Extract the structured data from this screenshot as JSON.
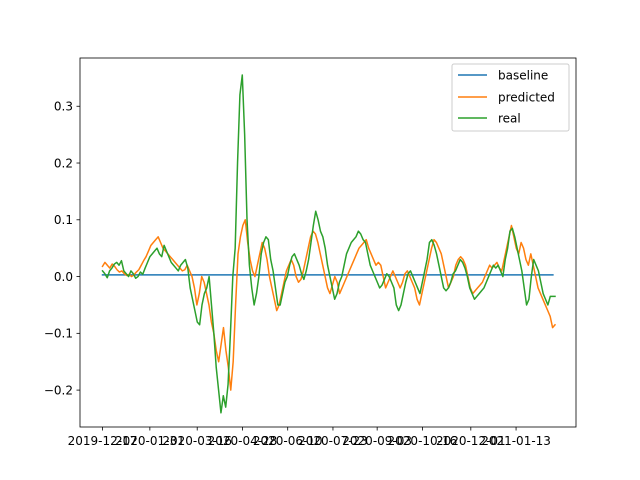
{
  "chart_data": {
    "type": "line",
    "title": "",
    "xlabel": "",
    "ylabel": "",
    "x_tick_labels": [
      "2019-12-17",
      "2020-01-31",
      "2020-03-16",
      "2020-04-28",
      "2020-06-10",
      "2020-07-23",
      "2020-09-03",
      "2020-10-16",
      "2020-12-01",
      "2021-01-13"
    ],
    "ylim": [
      -0.265,
      0.385
    ],
    "y_ticks": [
      -0.2,
      -0.1,
      0.0,
      0.1,
      0.2,
      0.3
    ],
    "y_tick_labels": [
      "−0.2",
      "−0.1",
      "0.0",
      "0.1",
      "0.2",
      "0.3"
    ],
    "legend": {
      "placement": "top-right",
      "entries": [
        "baseline",
        "predicted",
        "real"
      ]
    },
    "grid": false,
    "colors": {
      "baseline": "#1f77b4",
      "predicted": "#ff7f0e",
      "real": "#2ca02c"
    },
    "series": [
      {
        "name": "baseline",
        "x_start": "2019-12-17",
        "x_end": "2021-02-17",
        "values": [
          0.003,
          0.003
        ]
      },
      {
        "name": "predicted",
        "x_start": "2019-12-17",
        "x_end": "2021-02-19",
        "values": [
          0.018,
          0.025,
          0.02,
          0.015,
          0.022,
          0.018,
          0.012,
          0.008,
          0.01,
          0.005,
          0.002,
          0.004,
          0.0,
          0.003,
          0.008,
          0.012,
          0.02,
          0.028,
          0.035,
          0.045,
          0.055,
          0.06,
          0.065,
          0.07,
          0.06,
          0.05,
          0.045,
          0.04,
          0.035,
          0.03,
          0.025,
          0.02,
          0.015,
          0.01,
          0.012,
          0.02,
          0.01,
          0.0,
          -0.02,
          -0.05,
          -0.03,
          0.0,
          -0.01,
          -0.03,
          -0.05,
          -0.08,
          -0.1,
          -0.13,
          -0.15,
          -0.12,
          -0.09,
          -0.13,
          -0.16,
          -0.2,
          -0.15,
          -0.05,
          0.04,
          0.07,
          0.09,
          0.1,
          0.06,
          0.03,
          0.01,
          0.0,
          0.02,
          0.04,
          0.06,
          0.05,
          0.03,
          0.0,
          -0.02,
          -0.04,
          -0.06,
          -0.05,
          -0.03,
          -0.01,
          0.01,
          0.02,
          0.03,
          0.02,
          0.0,
          -0.01,
          -0.005,
          0.01,
          0.03,
          0.05,
          0.07,
          0.08,
          0.075,
          0.06,
          0.04,
          0.02,
          0.0,
          -0.02,
          -0.03,
          -0.015,
          0.0,
          -0.01,
          -0.03,
          -0.02,
          -0.01,
          0.0,
          0.01,
          0.02,
          0.03,
          0.04,
          0.05,
          0.055,
          0.06,
          0.065,
          0.05,
          0.04,
          0.03,
          0.02,
          0.025,
          0.02,
          0.0,
          -0.02,
          -0.01,
          0.0,
          0.01,
          0.0,
          -0.01,
          -0.02,
          -0.01,
          0.005,
          0.01,
          0.0,
          -0.01,
          -0.02,
          -0.04,
          -0.05,
          -0.03,
          -0.01,
          0.01,
          0.03,
          0.05,
          0.065,
          0.06,
          0.05,
          0.04,
          0.02,
          0.0,
          -0.02,
          -0.01,
          0.0,
          0.02,
          0.03,
          0.035,
          0.03,
          0.02,
          0.0,
          -0.02,
          -0.03,
          -0.025,
          -0.02,
          -0.015,
          -0.01,
          0.0,
          0.01,
          0.02,
          0.015,
          0.02,
          0.025,
          0.015,
          0.01,
          0.03,
          0.05,
          0.07,
          0.09,
          0.07,
          0.05,
          0.04,
          0.06,
          0.05,
          0.03,
          0.02,
          0.04,
          0.02,
          0.0,
          -0.02,
          -0.03,
          -0.04,
          -0.05,
          -0.06,
          -0.07,
          -0.09,
          -0.085
        ]
      },
      {
        "name": "real",
        "x_start": "2019-12-17",
        "x_end": "2021-02-19",
        "values": [
          0.01,
          0.005,
          -0.002,
          0.01,
          0.015,
          0.022,
          0.025,
          0.02,
          0.028,
          0.01,
          0.005,
          0.0,
          0.01,
          0.005,
          -0.003,
          0.0,
          0.008,
          0.004,
          0.015,
          0.025,
          0.035,
          0.04,
          0.045,
          0.05,
          0.04,
          0.035,
          0.055,
          0.045,
          0.035,
          0.025,
          0.02,
          0.015,
          0.01,
          0.02,
          0.025,
          0.03,
          0.015,
          -0.02,
          -0.04,
          -0.06,
          -0.08,
          -0.085,
          -0.05,
          -0.03,
          -0.02,
          0.0,
          -0.05,
          -0.1,
          -0.16,
          -0.2,
          -0.24,
          -0.21,
          -0.23,
          -0.19,
          -0.1,
          0.0,
          0.05,
          0.2,
          0.32,
          0.355,
          0.25,
          0.1,
          0.02,
          -0.02,
          -0.05,
          -0.03,
          0.0,
          0.04,
          0.06,
          0.07,
          0.065,
          0.03,
          0.01,
          -0.02,
          -0.05,
          -0.05,
          -0.03,
          -0.01,
          0.0,
          0.02,
          0.035,
          0.04,
          0.03,
          0.02,
          0.005,
          -0.005,
          0.01,
          0.03,
          0.06,
          0.09,
          0.115,
          0.1,
          0.08,
          0.07,
          0.05,
          0.02,
          0.0,
          -0.02,
          -0.04,
          -0.03,
          -0.01,
          0.0,
          0.02,
          0.04,
          0.05,
          0.06,
          0.065,
          0.07,
          0.08,
          0.075,
          0.065,
          0.06,
          0.04,
          0.02,
          0.01,
          0.0,
          -0.01,
          -0.02,
          -0.015,
          -0.005,
          0.005,
          0.0,
          -0.01,
          -0.02,
          -0.05,
          -0.06,
          -0.05,
          -0.03,
          -0.01,
          0.005,
          0.01,
          0.0,
          -0.01,
          -0.02,
          -0.03,
          -0.01,
          0.01,
          0.03,
          0.06,
          0.065,
          0.055,
          0.04,
          0.02,
          0.0,
          -0.02,
          -0.025,
          -0.02,
          -0.01,
          0.005,
          0.01,
          0.02,
          0.03,
          0.025,
          0.015,
          0.0,
          -0.02,
          -0.03,
          -0.04,
          -0.035,
          -0.03,
          -0.025,
          -0.02,
          -0.01,
          0.0,
          0.01,
          0.02,
          0.015,
          0.02,
          0.01,
          0.0,
          0.03,
          0.05,
          0.08,
          0.085,
          0.07,
          0.05,
          0.03,
          0.01,
          -0.02,
          -0.05,
          -0.04,
          0.0,
          0.03,
          0.02,
          0.01,
          -0.01,
          -0.03,
          -0.04,
          -0.05,
          -0.035,
          -0.035,
          -0.035
        ]
      }
    ]
  }
}
